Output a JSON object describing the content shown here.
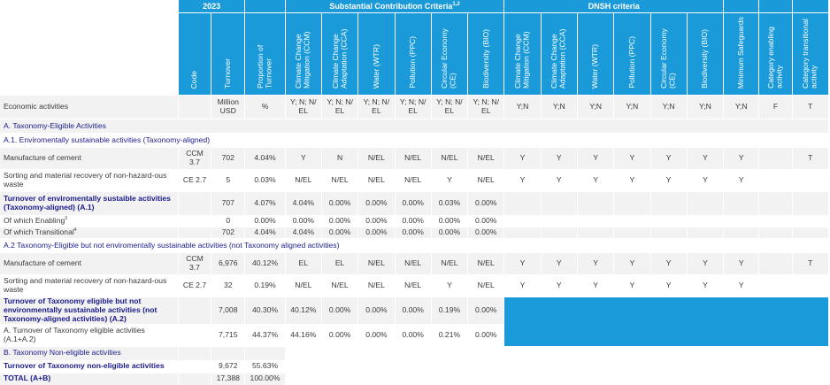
{
  "year": "2023",
  "group_headers": {
    "substantial": "Substantial Contribution Criteria",
    "substantial_sup": "1,2",
    "dnsh": "DNSH criteria"
  },
  "columns": {
    "code": "Code",
    "turnover": "Turnover",
    "proportion": "Proportion of Turnover",
    "sc_ccm": "Climate Change Mitigation (CCM)",
    "sc_cca": "Climate Change Adaptation (CCA)",
    "sc_wtr": "Water (WTR)",
    "sc_ppc": "Pollution (PPC)",
    "sc_ce": "Circular Economy (CE)",
    "sc_bio": "Biodiversity (BIO)",
    "d_ccm": "Climate Change Mitigation (CCM)",
    "d_cca": "Climate Change Adaptation (CCA)",
    "d_wtr": "Water (WTR)",
    "d_ppc": "Pollution (PPC)",
    "d_ce": "Circular Economy (CE)",
    "d_bio": "Biodiversity (BIO)",
    "min_safe": "Minimum Safeguards",
    "cat_enabling": "Category enabling activity",
    "cat_transitional": "Category transitional activity"
  },
  "units": {
    "label": "Economic activities",
    "turnover": "Million USD",
    "proportion": "%",
    "sc": "Y; N; N/ EL",
    "dnsh": "Y;N",
    "enabling": "F",
    "transitional": "T"
  },
  "sections": {
    "a": "A. Taxonomy-Eligible Activities",
    "a1": "A.1. Enviromentally sustainable activities (Taxonomy-aligned)",
    "a2": "A.2 Taxonomy-Eligible but not enviromentally sustainable activities (not Taxonomy aligned activities)",
    "b": "B. Taxonomy Non-eligible activities"
  },
  "a1_rows": [
    {
      "label": "Manufacture of cement",
      "code": "CCM 3.7",
      "turnover": "702",
      "prop": "4.04%",
      "ccm": "Y",
      "cca": "N",
      "wtr": "N/EL",
      "ppc": "N/EL",
      "ce": "N/EL",
      "bio": "N/EL",
      "d": [
        "Y",
        "Y",
        "Y",
        "Y",
        "Y",
        "Y"
      ],
      "ms": "Y",
      "f": "",
      "t": "T"
    },
    {
      "label": "Sorting and material recovery of non-hazard-ous waste",
      "code": "CE 2.7",
      "turnover": "5",
      "prop": "0.03%",
      "ccm": "N/EL",
      "cca": "N/EL",
      "wtr": "N/EL",
      "ppc": "N/EL",
      "ce": "Y",
      "bio": "N/EL",
      "d": [
        "Y",
        "Y",
        "Y",
        "Y",
        "Y",
        "Y"
      ],
      "ms": "Y",
      "f": "",
      "t": ""
    }
  ],
  "a1_total": {
    "label": "Turnover of enviromentally sustaible activities (Taxonomy-aligned) (A.1)",
    "turnover": "707",
    "prop": "4.07%",
    "ccm": "4.04%",
    "cca": "0.00%",
    "wtr": "0.00%",
    "ppc": "0.00%",
    "ce": "0.03%",
    "bio": "0.00%"
  },
  "enabling": {
    "label": "Of which Enabling",
    "sup": "3",
    "turnover": "0",
    "prop": "0.00%",
    "ccm": "0.00%",
    "cca": "0.00%",
    "wtr": "0.00%",
    "ppc": "0.00%",
    "ce": "0.00%",
    "bio": "0.00%"
  },
  "transitional": {
    "label": "Of which Transitional",
    "sup": "4",
    "turnover": "702",
    "prop": "4.04%",
    "ccm": "4.04%",
    "cca": "0.00%",
    "wtr": "0.00%",
    "ppc": "0.00%",
    "ce": "0.00%",
    "bio": "0.00%"
  },
  "a2_rows": [
    {
      "label": "Manufacture of cement",
      "code": "CCM 3.7",
      "turnover": "6,976",
      "prop": "40.12%",
      "ccm": "EL",
      "cca": "EL",
      "wtr": "N/EL",
      "ppc": "N/EL",
      "ce": "N/EL",
      "bio": "N/EL",
      "d": [
        "Y",
        "Y",
        "Y",
        "Y",
        "Y",
        "Y"
      ],
      "ms": "Y",
      "f": "",
      "t": "T"
    },
    {
      "label": "Sorting and material recovery of non-hazard-ous waste",
      "code": "CE 2.7",
      "turnover": "32",
      "prop": "0.19%",
      "ccm": "N/EL",
      "cca": "N/EL",
      "wtr": "N/EL",
      "ppc": "N/EL",
      "ce": "Y",
      "bio": "N/EL",
      "d": [
        "Y",
        "Y",
        "Y",
        "Y",
        "Y",
        "Y"
      ],
      "ms": "Y",
      "f": "",
      "t": ""
    }
  ],
  "a2_total": {
    "label": "Turnover of Taxonomy eligible but not environmentally sustainable activities (not Taxonomy-aligned activities) (A.2)",
    "turnover": "7,008",
    "prop": "40.30%",
    "ccm": "40.12%",
    "cca": "0.00%",
    "wtr": "0.00%",
    "ppc": "0.00%",
    "ce": "0.19%",
    "bio": "0.00%"
  },
  "a_total": {
    "label": "A. Turnover of Taxonomy eligible activities (A.1+A.2)",
    "turnover": "7,715",
    "prop": "44.37%",
    "ccm": "44.16%",
    "cca": "0.00%",
    "wtr": "0.00%",
    "ppc": "0.00%",
    "ce": "0.21%",
    "bio": "0.00%"
  },
  "non_eligible": {
    "label": "Turnover of Taxonomy non-eligible activities",
    "turnover": "9,672",
    "prop": "55.63%"
  },
  "grand_total": {
    "label": "TOTAL (A+B)",
    "turnover": "17,388",
    "prop": "100.00%"
  },
  "colors": {
    "header_blue": "#1a9ad8",
    "row_grey": "#f2f2f2",
    "label_navy": "#1a1a8c"
  }
}
